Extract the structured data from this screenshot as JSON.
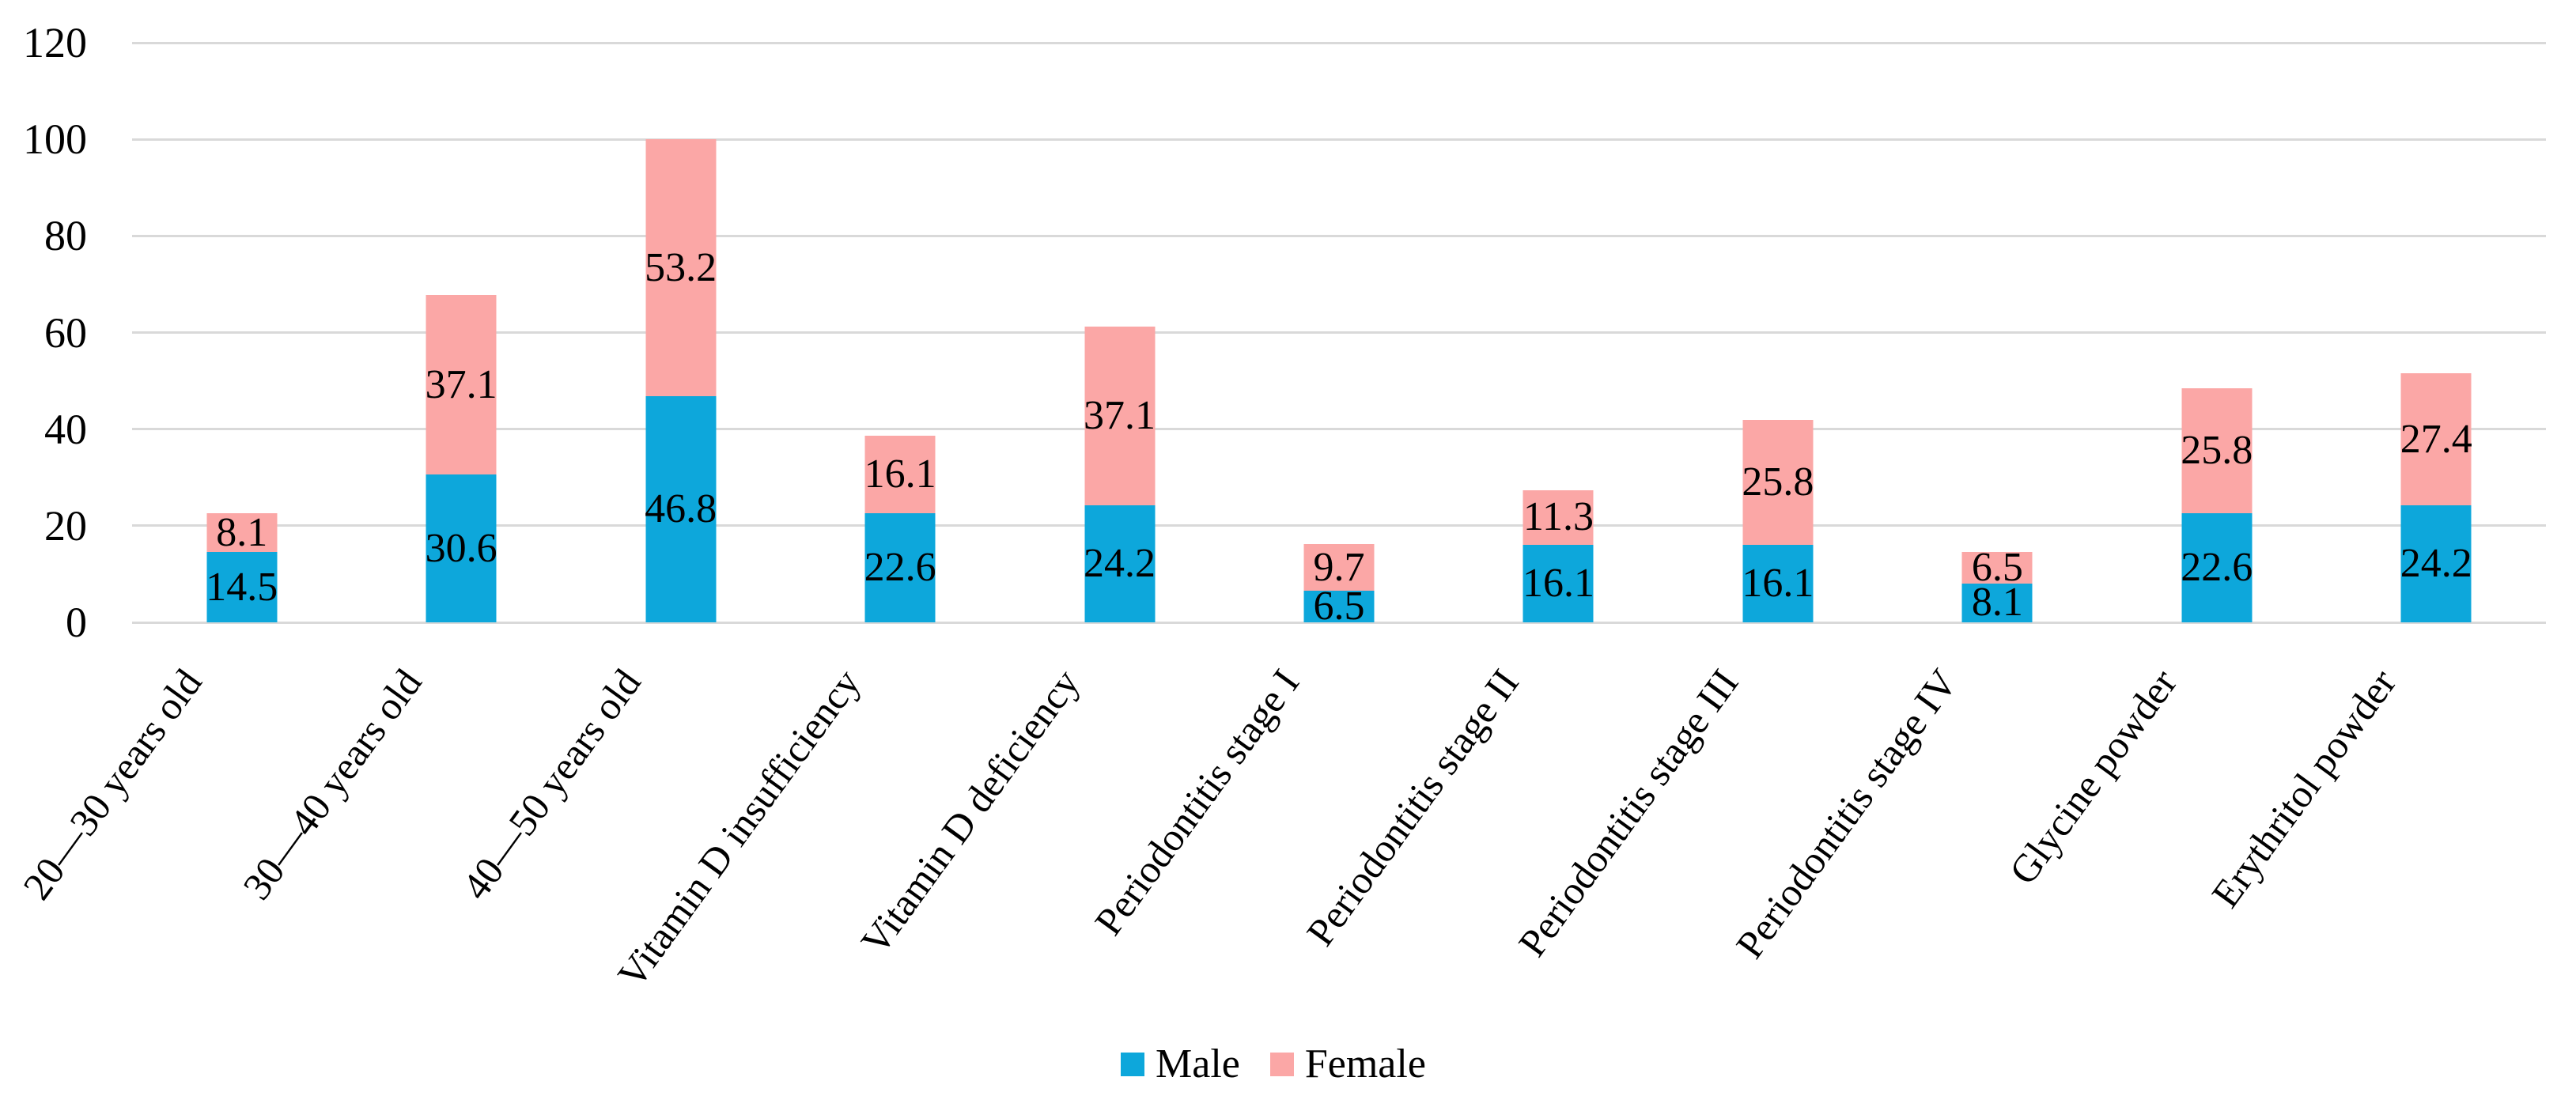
{
  "figure": {
    "background": "#FFFFFF",
    "text_color": "#000000",
    "grid_color": "#D9D9D9"
  },
  "chart_data": {
    "type": "bar",
    "stacked": true,
    "title": "",
    "xlabel": "",
    "ylabel": "",
    "categories": [
      "20—30 years old",
      "30—40 years old",
      "40—50 years old",
      "Vitamin D insufficiency",
      "Vitamin D deficiency",
      "Periodontitis stage I",
      "Periodontitis stage II",
      "Periodontitis stage III",
      "Periodontitis stage IV",
      "Glycine powder",
      "Erythritol powder"
    ],
    "series": [
      {
        "name": "Male",
        "color": "#0DA7DB",
        "values": [
          14.5,
          30.6,
          46.8,
          22.6,
          24.2,
          6.5,
          16.1,
          16.1,
          8.1,
          22.6,
          24.2
        ]
      },
      {
        "name": "Female",
        "color": "#FBA7A6",
        "values": [
          8.1,
          37.1,
          53.2,
          16.1,
          37.1,
          9.7,
          11.3,
          25.8,
          6.5,
          25.8,
          27.4
        ]
      }
    ],
    "ylim": [
      0,
      120
    ],
    "yticks": [
      0,
      20,
      40,
      60,
      80,
      100,
      120
    ],
    "grid": "horizontal",
    "value_label_position": "center",
    "legend_position": "bottom"
  }
}
